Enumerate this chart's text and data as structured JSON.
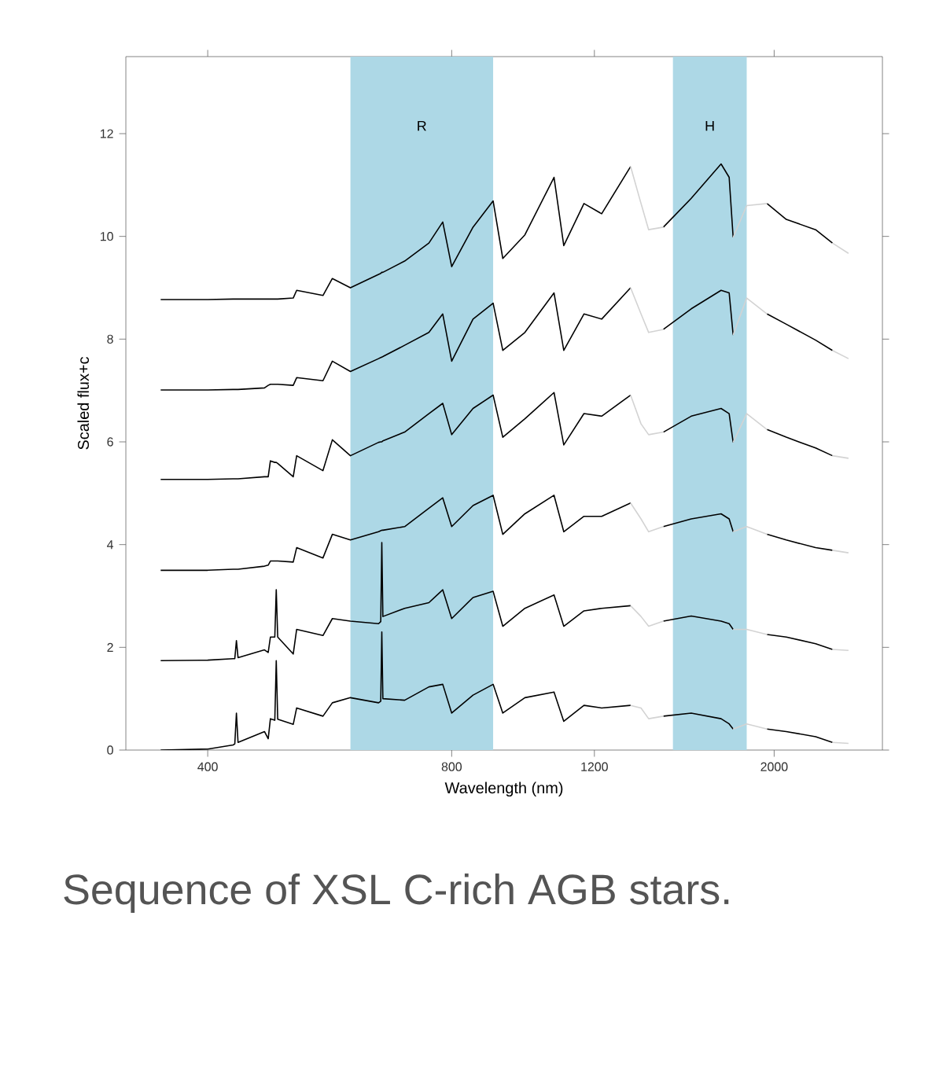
{
  "chart_data": {
    "type": "line",
    "xlabel": "Wavelength (nm)",
    "ylabel": "Scaled flux+c",
    "log": "x",
    "annotations": [
      "Sequence of XSL C-rich AGB stars."
    ],
    "xlim": [
      317,
      2720
    ],
    "ylim": [
      0,
      13.5
    ],
    "xticks": [
      400,
      800,
      1200,
      2000
    ],
    "yticks": [
      0,
      2,
      4,
      6,
      8,
      10,
      12
    ],
    "bands": [
      {
        "axis": "x",
        "from": 600,
        "to": 900,
        "label": "R",
        "color": "#add8e6"
      },
      {
        "axis": "x",
        "from": 1500,
        "to": 1850,
        "label": "H",
        "color": "#add8e6"
      }
    ],
    "x": [
      350,
      400,
      430,
      432,
      434,
      436,
      470,
      475,
      478,
      484,
      486,
      488,
      510,
      515,
      555,
      570,
      600,
      650,
      654,
      656,
      658,
      700,
      750,
      780,
      800,
      850,
      900,
      925,
      985,
      1070,
      1100,
      1165,
      1225,
      1330,
      1370,
      1400,
      1460,
      1580,
      1720,
      1760,
      1780,
      1850,
      1960,
      2070,
      2250,
      2360,
      2470
    ],
    "series": [
      {
        "color": "#000000",
        "values": [
          8.77,
          8.77,
          8.78,
          8.78,
          8.78,
          8.78,
          8.78,
          8.78,
          8.78,
          8.78,
          8.78,
          8.78,
          8.8,
          8.95,
          8.85,
          9.18,
          9.0,
          9.26,
          9.28,
          9.3,
          9.3,
          9.52,
          9.87,
          10.28,
          9.41,
          10.18,
          10.69,
          9.57,
          10.03,
          11.15,
          9.82,
          10.64,
          10.44,
          11.36,
          null,
          null,
          10.18,
          10.74,
          11.41,
          11.15,
          9.98,
          null,
          10.64,
          10.33,
          10.13,
          9.87,
          null
        ]
      },
      {
        "color": "#d3d3d3",
        "values": [
          null,
          null,
          null,
          null,
          null,
          null,
          null,
          null,
          null,
          null,
          null,
          null,
          null,
          null,
          null,
          null,
          null,
          null,
          null,
          null,
          null,
          null,
          null,
          null,
          null,
          null,
          null,
          null,
          null,
          null,
          null,
          null,
          null,
          11.36,
          10.64,
          10.13,
          10.18,
          null,
          null,
          null,
          9.98,
          10.6,
          10.64,
          null,
          null,
          9.87,
          9.67
        ]
      },
      {
        "color": "#000000",
        "values": [
          7.01,
          7.01,
          7.02,
          7.02,
          7.02,
          7.02,
          7.05,
          7.1,
          7.12,
          7.12,
          7.12,
          7.12,
          7.1,
          7.25,
          7.19,
          7.57,
          7.37,
          7.62,
          7.64,
          7.65,
          7.66,
          7.88,
          8.13,
          8.49,
          7.57,
          8.39,
          8.7,
          7.78,
          8.13,
          8.9,
          7.78,
          8.49,
          8.39,
          9.0,
          null,
          null,
          8.19,
          8.59,
          8.95,
          8.9,
          8.08,
          null,
          8.49,
          8.29,
          7.98,
          7.78,
          null
        ]
      },
      {
        "color": "#d3d3d3",
        "values": [
          null,
          null,
          null,
          null,
          null,
          null,
          null,
          null,
          null,
          null,
          null,
          null,
          null,
          null,
          null,
          null,
          null,
          null,
          null,
          null,
          null,
          null,
          null,
          null,
          null,
          null,
          null,
          null,
          null,
          null,
          null,
          null,
          null,
          9.0,
          8.49,
          8.13,
          8.19,
          null,
          null,
          null,
          8.08,
          8.8,
          8.49,
          null,
          null,
          7.78,
          7.62
        ]
      },
      {
        "color": "#000000",
        "values": [
          5.27,
          5.27,
          5.28,
          5.28,
          5.28,
          5.28,
          5.32,
          5.32,
          5.63,
          5.6,
          5.6,
          5.58,
          5.32,
          5.73,
          5.44,
          6.04,
          5.73,
          5.99,
          6.0,
          6.0,
          6.02,
          6.19,
          6.55,
          6.75,
          6.14,
          6.65,
          6.91,
          6.09,
          6.45,
          6.96,
          5.94,
          6.55,
          6.5,
          6.91,
          null,
          null,
          6.19,
          6.5,
          6.65,
          6.55,
          5.99,
          null,
          6.24,
          6.09,
          5.88,
          5.73,
          null
        ]
      },
      {
        "color": "#d3d3d3",
        "values": [
          null,
          null,
          null,
          null,
          null,
          null,
          null,
          null,
          null,
          null,
          null,
          null,
          null,
          null,
          null,
          null,
          null,
          null,
          null,
          null,
          null,
          null,
          null,
          null,
          null,
          null,
          null,
          null,
          null,
          null,
          null,
          null,
          null,
          6.91,
          6.35,
          6.14,
          6.19,
          null,
          null,
          null,
          5.99,
          6.55,
          6.24,
          null,
          null,
          5.73,
          5.68
        ]
      },
      {
        "color": "#000000",
        "values": [
          3.5,
          3.5,
          3.52,
          3.52,
          3.52,
          3.52,
          3.58,
          3.6,
          3.68,
          3.68,
          3.68,
          3.68,
          3.66,
          3.94,
          3.74,
          4.2,
          4.09,
          4.25,
          4.27,
          4.28,
          4.28,
          4.35,
          4.71,
          4.91,
          4.35,
          4.76,
          4.96,
          4.2,
          4.6,
          4.96,
          4.25,
          4.55,
          4.55,
          4.81,
          null,
          null,
          4.35,
          4.5,
          4.6,
          4.5,
          4.25,
          null,
          4.2,
          4.09,
          3.94,
          3.89,
          null
        ]
      },
      {
        "color": "#d3d3d3",
        "values": [
          null,
          null,
          null,
          null,
          null,
          null,
          null,
          null,
          null,
          null,
          null,
          null,
          null,
          null,
          null,
          null,
          null,
          null,
          null,
          null,
          null,
          null,
          null,
          null,
          null,
          null,
          null,
          null,
          null,
          null,
          null,
          null,
          null,
          4.81,
          4.5,
          4.25,
          4.35,
          null,
          null,
          null,
          4.25,
          4.35,
          4.2,
          null,
          null,
          3.89,
          3.84
        ]
      },
      {
        "color": "#000000",
        "values": [
          1.74,
          1.75,
          1.78,
          1.78,
          2.13,
          1.8,
          1.95,
          1.9,
          2.2,
          2.2,
          3.12,
          2.2,
          1.87,
          2.35,
          2.23,
          2.56,
          2.51,
          2.46,
          2.5,
          4.04,
          2.6,
          2.76,
          2.87,
          3.12,
          2.56,
          2.97,
          3.09,
          2.41,
          2.76,
          3.02,
          2.41,
          2.71,
          2.76,
          2.81,
          null,
          null,
          2.51,
          2.61,
          2.51,
          2.46,
          2.35,
          null,
          2.25,
          2.2,
          2.07,
          1.96,
          null
        ]
      },
      {
        "color": "#d3d3d3",
        "values": [
          null,
          null,
          null,
          null,
          null,
          null,
          null,
          null,
          null,
          null,
          null,
          null,
          null,
          null,
          null,
          null,
          null,
          null,
          null,
          null,
          null,
          null,
          null,
          null,
          null,
          null,
          null,
          null,
          null,
          null,
          null,
          null,
          null,
          2.81,
          2.6,
          2.41,
          2.51,
          null,
          null,
          null,
          2.35,
          2.35,
          2.25,
          null,
          null,
          1.96,
          1.94
        ]
      },
      {
        "color": "#000000",
        "values": [
          0.0,
          0.02,
          0.1,
          0.12,
          0.72,
          0.15,
          0.36,
          0.22,
          0.61,
          0.58,
          1.74,
          0.6,
          0.5,
          0.82,
          0.66,
          0.92,
          1.02,
          0.92,
          0.95,
          2.3,
          1.0,
          0.97,
          1.23,
          1.28,
          0.72,
          1.07,
          1.28,
          0.72,
          1.02,
          1.13,
          0.56,
          0.87,
          0.82,
          0.87,
          null,
          null,
          0.66,
          0.72,
          0.61,
          0.51,
          0.41,
          null,
          0.41,
          0.36,
          0.26,
          0.15,
          null
        ]
      },
      {
        "color": "#d3d3d3",
        "values": [
          null,
          null,
          null,
          null,
          null,
          null,
          null,
          null,
          null,
          null,
          null,
          null,
          null,
          null,
          null,
          null,
          null,
          null,
          null,
          null,
          null,
          null,
          null,
          null,
          null,
          null,
          null,
          null,
          null,
          null,
          null,
          null,
          null,
          0.87,
          0.82,
          0.61,
          0.66,
          null,
          null,
          null,
          0.41,
          0.51,
          0.41,
          null,
          null,
          0.15,
          0.13
        ]
      }
    ]
  }
}
